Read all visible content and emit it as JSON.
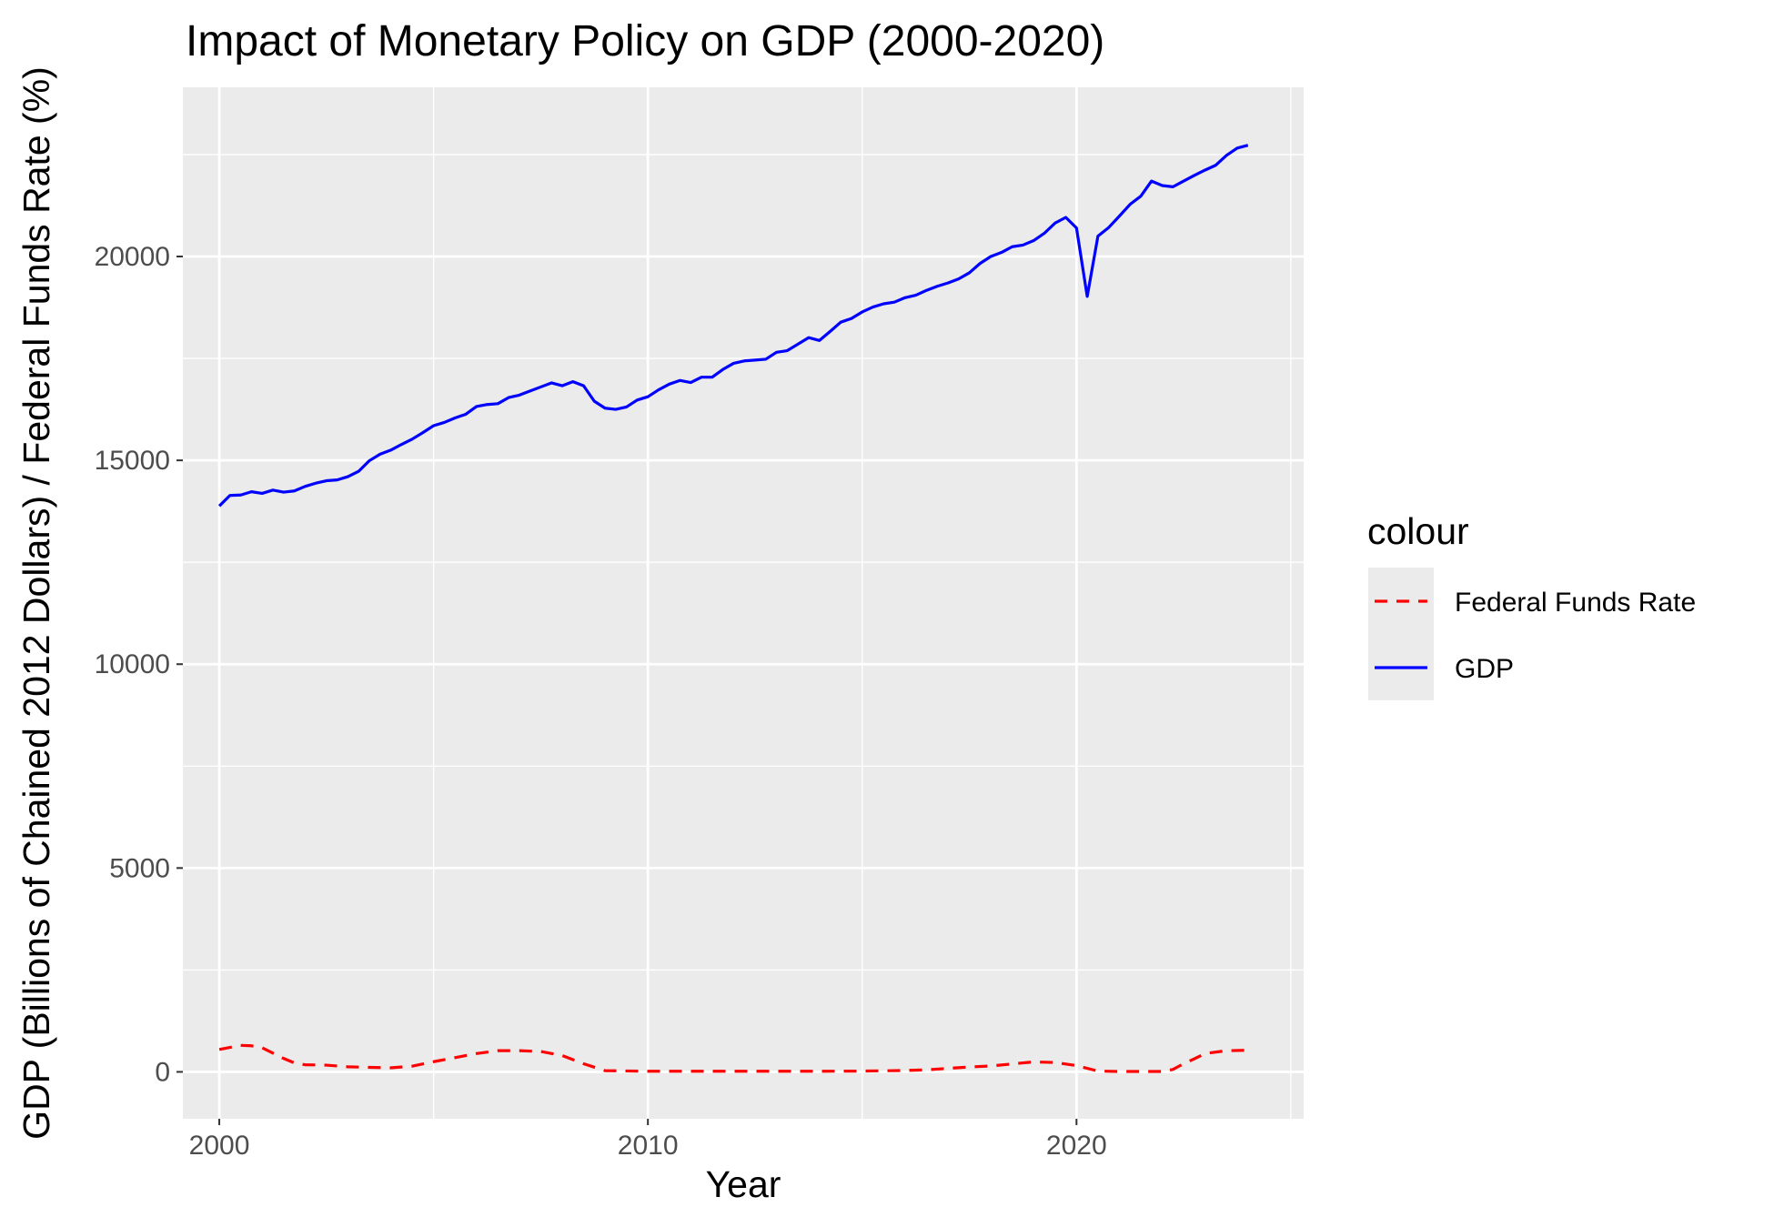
{
  "chart_data": {
    "type": "line",
    "title": "Impact of Monetary Policy on GDP (2000-2020)",
    "xlabel": "Year",
    "ylabel": "GDP (Billions of Chained 2012 Dollars) / Federal Funds Rate (%)",
    "xlim": [
      1999.15,
      2025.3
    ],
    "ylim": [
      -1150,
      24150
    ],
    "x_ticks": [
      2000,
      2010,
      2020
    ],
    "x_tick_labels": [
      "2000",
      "2010",
      "2020"
    ],
    "y_ticks": [
      0,
      5000,
      10000,
      15000,
      20000
    ],
    "y_tick_labels": [
      "0",
      "5000",
      "10000",
      "15000",
      "20000"
    ],
    "grid": true,
    "legend": {
      "title": "colour",
      "position": "right"
    },
    "series": [
      {
        "name": "Federal Funds Rate",
        "color": "#ff0000",
        "line_style": "dashed",
        "x": [
          2000.0,
          2000.25,
          2000.5,
          2000.75,
          2001.0,
          2001.25,
          2001.5,
          2001.75,
          2002.0,
          2002.5,
          2003.0,
          2003.5,
          2004.0,
          2004.5,
          2005.0,
          2005.5,
          2006.0,
          2006.5,
          2007.0,
          2007.5,
          2008.0,
          2008.5,
          2009.0,
          2010.0,
          2011.0,
          2012.0,
          2013.0,
          2014.0,
          2015.0,
          2016.0,
          2016.5,
          2017.0,
          2017.5,
          2018.0,
          2018.5,
          2019.0,
          2019.5,
          2020.0,
          2020.5,
          2021.0,
          2021.5,
          2022.0,
          2022.25,
          2022.5,
          2022.75,
          2023.0,
          2023.5,
          2024.0
        ],
        "y": [
          550,
          600,
          650,
          640,
          590,
          460,
          330,
          220,
          175,
          165,
          125,
          110,
          100,
          140,
          250,
          350,
          450,
          520,
          520,
          500,
          400,
          200,
          30,
          15,
          15,
          15,
          15,
          15,
          20,
          35,
          50,
          85,
          120,
          145,
          195,
          245,
          230,
          155,
          20,
          10,
          10,
          10,
          60,
          200,
          320,
          450,
          520,
          530
        ]
      },
      {
        "name": "GDP",
        "color": "#0000ff",
        "line_style": "solid",
        "x": [
          2000.0,
          2000.25,
          2000.5,
          2000.75,
          2001.0,
          2001.25,
          2001.5,
          2001.75,
          2002.0,
          2002.25,
          2002.5,
          2002.75,
          2003.0,
          2003.25,
          2003.5,
          2003.75,
          2004.0,
          2004.25,
          2004.5,
          2004.75,
          2005.0,
          2005.25,
          2005.5,
          2005.75,
          2006.0,
          2006.25,
          2006.5,
          2006.75,
          2007.0,
          2007.25,
          2007.5,
          2007.75,
          2008.0,
          2008.25,
          2008.5,
          2008.75,
          2009.0,
          2009.25,
          2009.5,
          2009.75,
          2010.0,
          2010.25,
          2010.5,
          2010.75,
          2011.0,
          2011.25,
          2011.5,
          2011.75,
          2012.0,
          2012.25,
          2012.5,
          2012.75,
          2013.0,
          2013.25,
          2013.5,
          2013.75,
          2014.0,
          2014.25,
          2014.5,
          2014.75,
          2015.0,
          2015.25,
          2015.5,
          2015.75,
          2016.0,
          2016.25,
          2016.5,
          2016.75,
          2017.0,
          2017.25,
          2017.5,
          2017.75,
          2018.0,
          2018.25,
          2018.5,
          2018.75,
          2019.0,
          2019.25,
          2019.5,
          2019.75,
          2020.0,
          2020.25,
          2020.5,
          2020.75,
          2021.0,
          2021.25,
          2021.5,
          2021.75,
          2022.0,
          2022.25,
          2022.5,
          2022.75,
          2023.0,
          2023.25,
          2023.5,
          2023.75,
          2024.0
        ],
        "y": [
          13880,
          14140,
          14150,
          14230,
          14190,
          14270,
          14220,
          14250,
          14360,
          14440,
          14500,
          14520,
          14600,
          14730,
          14990,
          15150,
          15250,
          15390,
          15520,
          15680,
          15850,
          15930,
          16040,
          16130,
          16320,
          16370,
          16390,
          16540,
          16600,
          16700,
          16800,
          16900,
          16830,
          16930,
          16830,
          16450,
          16280,
          16250,
          16310,
          16480,
          16560,
          16730,
          16870,
          16960,
          16910,
          17040,
          17040,
          17230,
          17380,
          17440,
          17460,
          17480,
          17650,
          17690,
          17850,
          18010,
          17940,
          18160,
          18390,
          18480,
          18640,
          18760,
          18840,
          18880,
          18990,
          19050,
          19170,
          19270,
          19350,
          19450,
          19600,
          19830,
          20000,
          20100,
          20240,
          20280,
          20390,
          20570,
          20820,
          20960,
          20700,
          19020,
          20500,
          20710,
          20990,
          21280,
          21480,
          21850,
          21740,
          21710,
          21850,
          21990,
          22120,
          22240,
          22480,
          22660,
          22730
        ]
      }
    ]
  }
}
